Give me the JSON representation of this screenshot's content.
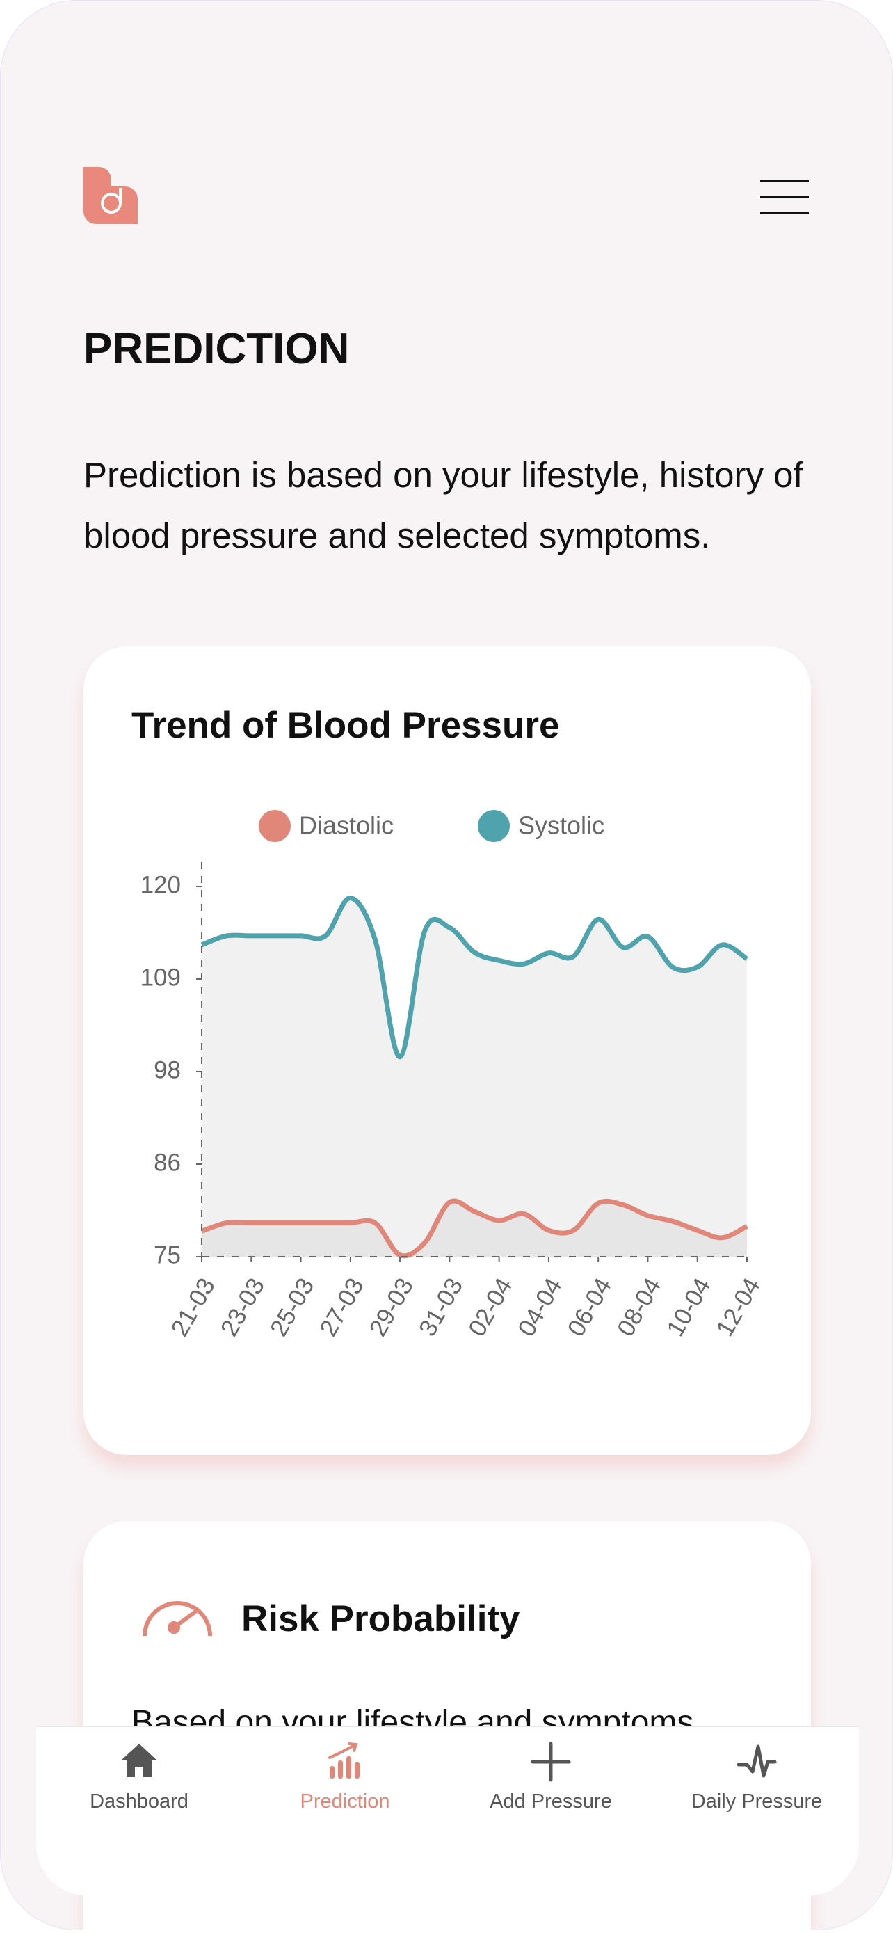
{
  "page": {
    "title": "PREDICTION",
    "description": "Prediction is based on your lifestyle, history of blood pressure and selected symptoms."
  },
  "chart_data": {
    "type": "line",
    "title": "Trend of Blood Pressure",
    "categories": [
      "21-03",
      null,
      "23-03",
      null,
      "25-03",
      null,
      "27-03",
      null,
      "29-03",
      null,
      "31-03",
      null,
      "02-04",
      null,
      "04-04",
      null,
      "06-04",
      null,
      "08-04",
      null,
      "10-04",
      null,
      "12-04"
    ],
    "series": [
      {
        "name": "Diastolic",
        "color": "#e0877a",
        "fill": "#e6e6e6",
        "values": [
          78.1,
          79.1,
          79.1,
          79.1,
          79.1,
          79.1,
          79.1,
          79.1,
          75.2,
          76.7,
          81.6,
          80.5,
          79.4,
          80.2,
          78.2,
          78.2,
          81.5,
          81.3,
          80.0,
          79.3,
          78.2,
          77.3,
          78.7
        ]
      },
      {
        "name": "Systolic",
        "color": "#4ea3ad",
        "fill": "#f1f1f1",
        "values": [
          112.9,
          114,
          114,
          114,
          114,
          114,
          118.6,
          113.5,
          99.3,
          114.6,
          115,
          112,
          111,
          110.6,
          111.9,
          111.5,
          116,
          112.6,
          113.9,
          110.2,
          110.2,
          112.9,
          111.2
        ]
      }
    ],
    "ylim": [
      75,
      120
    ],
    "yticks": [
      75,
      {
        "value": 86.25,
        "label": "86"
      },
      {
        "value": 97.5,
        "label": "98"
      },
      {
        "value": 108.75,
        "label": "109"
      },
      120
    ]
  },
  "risk": {
    "title": "Risk Probability",
    "text": "Based on your lifestyle and symptoms"
  },
  "nav": {
    "items": [
      "Dashboard",
      "Prediction",
      "Add Pressure",
      "Daily Pressure"
    ],
    "active": 1,
    "active_color": "#e0877a",
    "color": "#555555"
  }
}
